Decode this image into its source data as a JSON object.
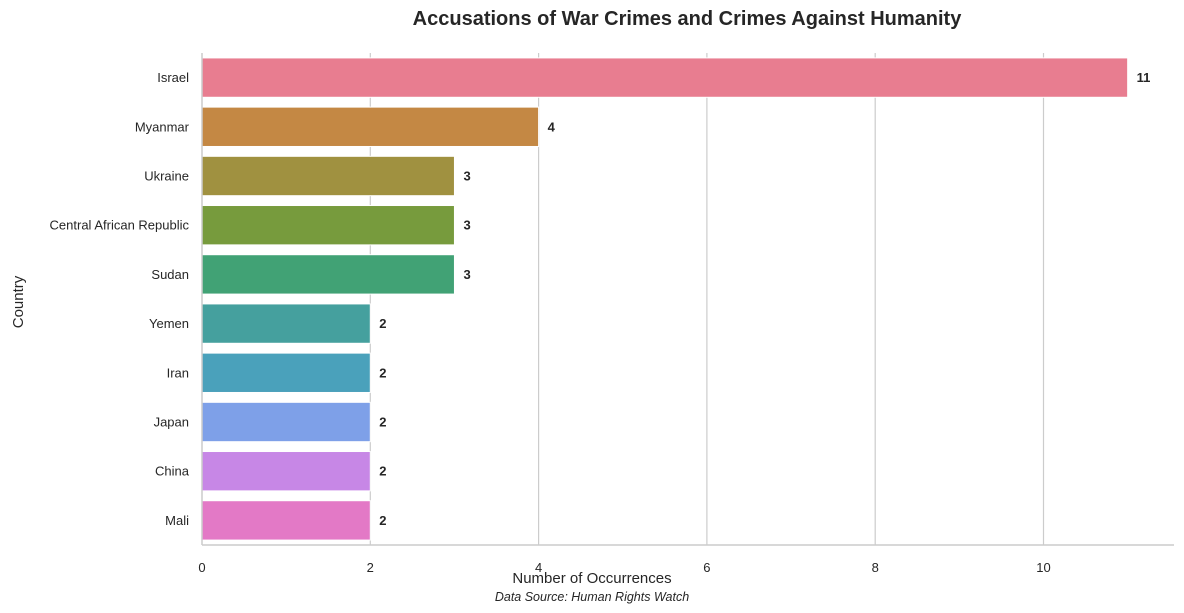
{
  "chart_data": {
    "type": "bar",
    "orientation": "horizontal",
    "title": "Accusations of War Crimes and Crimes Against Humanity",
    "xlabel": "Number of Occurrences",
    "ylabel": "Country",
    "source_note": "Data Source: Human Rights Watch",
    "categories": [
      "Israel",
      "Myanmar",
      "Ukraine",
      "Central African Republic",
      "Sudan",
      "Yemen",
      "Iran",
      "Japan",
      "China",
      "Mali"
    ],
    "values": [
      11,
      4,
      3,
      3,
      3,
      2,
      2,
      2,
      2,
      2
    ],
    "colors": [
      "#e87d90",
      "#c48844",
      "#a09140",
      "#779b3d",
      "#41a275",
      "#45a09e",
      "#4aa1bb",
      "#7ea0e8",
      "#c787e6",
      "#e379c6"
    ],
    "xlim": [
      0,
      11.55
    ],
    "xticks": [
      0,
      2,
      4,
      6,
      8,
      10
    ],
    "grid": "x"
  }
}
